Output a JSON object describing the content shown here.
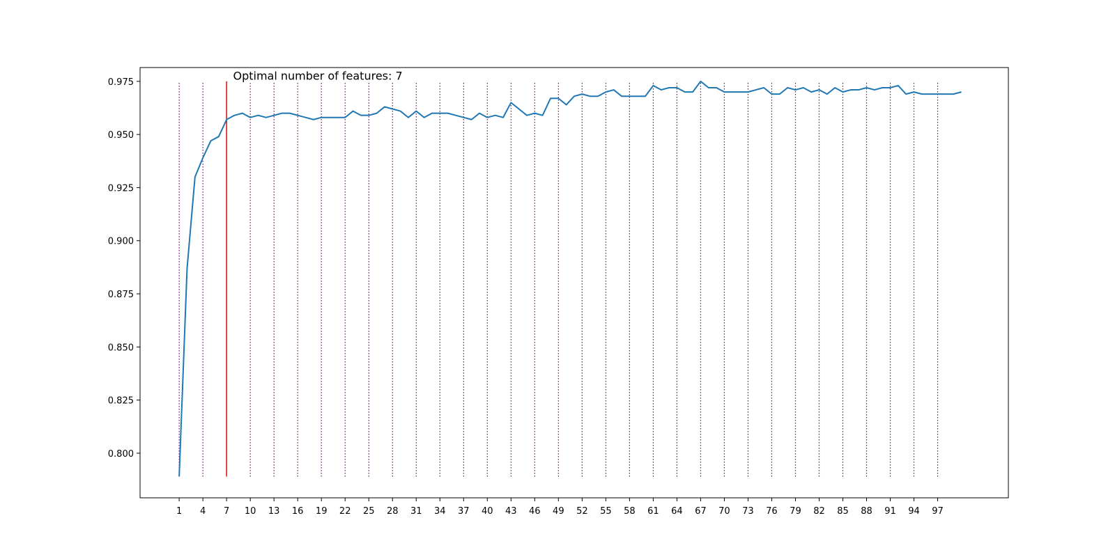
{
  "chart_data": {
    "type": "line",
    "title": "",
    "xlabel": "",
    "ylabel": "",
    "xlim": [
      -3.95,
      105.95
    ],
    "ylim": [
      0.779,
      0.9815
    ],
    "grid": false,
    "legend": "none",
    "x_ticks": [
      1,
      4,
      7,
      10,
      13,
      16,
      19,
      22,
      25,
      28,
      31,
      34,
      37,
      40,
      43,
      46,
      49,
      52,
      55,
      58,
      61,
      64,
      67,
      70,
      73,
      76,
      79,
      82,
      85,
      88,
      91,
      94,
      97
    ],
    "y_ticks": [
      0.8,
      0.825,
      0.85,
      0.875,
      0.9,
      0.925,
      0.95,
      0.975
    ],
    "y_tick_labels": [
      "0.800",
      "0.825",
      "0.850",
      "0.875",
      "0.900",
      "0.925",
      "0.950",
      "0.975"
    ],
    "series": [
      {
        "color": "#1f77b4",
        "x": [
          1,
          2,
          3,
          4,
          5,
          6,
          7,
          8,
          9,
          10,
          11,
          12,
          13,
          14,
          15,
          16,
          17,
          18,
          19,
          20,
          21,
          22,
          23,
          24,
          25,
          26,
          27,
          28,
          29,
          30,
          31,
          32,
          33,
          34,
          35,
          36,
          37,
          38,
          39,
          40,
          41,
          42,
          43,
          44,
          45,
          46,
          47,
          48,
          49,
          50,
          51,
          52,
          53,
          54,
          55,
          56,
          57,
          58,
          59,
          60,
          61,
          62,
          63,
          64,
          65,
          66,
          67,
          68,
          69,
          70,
          71,
          72,
          73,
          74,
          75,
          76,
          77,
          78,
          79,
          80,
          81,
          82,
          83,
          84,
          85,
          86,
          87,
          88,
          89,
          90,
          91,
          92,
          93,
          94,
          95,
          96,
          97,
          98,
          99,
          100
        ],
        "values": [
          0.789,
          0.887,
          0.93,
          0.939,
          0.947,
          0.949,
          0.957,
          0.959,
          0.96,
          0.958,
          0.959,
          0.958,
          0.959,
          0.96,
          0.96,
          0.959,
          0.958,
          0.957,
          0.958,
          0.958,
          0.958,
          0.958,
          0.961,
          0.959,
          0.959,
          0.96,
          0.963,
          0.962,
          0.961,
          0.958,
          0.961,
          0.958,
          0.96,
          0.96,
          0.96,
          0.959,
          0.958,
          0.957,
          0.96,
          0.958,
          0.959,
          0.958,
          0.965,
          0.962,
          0.959,
          0.96,
          0.959,
          0.967,
          0.967,
          0.964,
          0.968,
          0.969,
          0.968,
          0.968,
          0.97,
          0.971,
          0.968,
          0.968,
          0.968,
          0.968,
          0.973,
          0.971,
          0.972,
          0.972,
          0.97,
          0.97,
          0.975,
          0.972,
          0.972,
          0.97,
          0.97,
          0.97,
          0.97,
          0.971,
          0.972,
          0.969,
          0.969,
          0.972,
          0.971,
          0.972,
          0.97,
          0.971,
          0.969,
          0.972,
          0.97,
          0.971,
          0.971,
          0.972,
          0.971,
          0.972,
          0.972,
          0.973,
          0.969,
          0.97,
          0.969,
          0.969,
          0.969,
          0.969,
          0.969,
          0.97
        ]
      }
    ],
    "vlines": {
      "color": "#800080",
      "style": "dotted",
      "x": [
        1,
        4,
        7,
        10,
        13,
        16,
        19,
        22,
        25,
        28,
        31,
        34,
        37,
        40,
        43,
        46,
        49,
        52,
        55,
        58,
        61,
        64,
        67,
        70,
        73,
        76,
        79,
        82,
        85,
        88,
        91,
        94,
        97
      ],
      "ymin": 0.789,
      "ymax": 0.975
    },
    "optimal_line": {
      "x": 7,
      "color": "#ff0000",
      "ymin": 0.789,
      "ymax": 0.975
    },
    "annotation": {
      "text": "Optimal number of features: 7",
      "x": 8,
      "y": 0.977
    }
  }
}
